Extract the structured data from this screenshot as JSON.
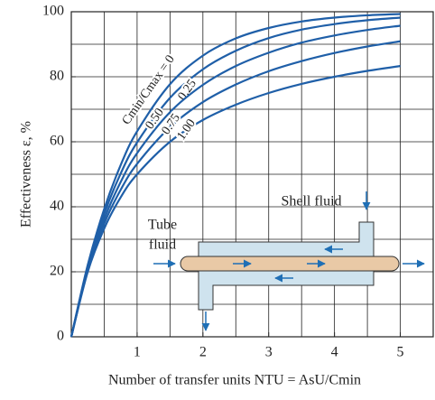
{
  "chart_data": {
    "type": "line",
    "x_label": "Number of transfer units NTU = AsU/Cmin",
    "y_label": "Effectiveness ε, %",
    "x": [
      0,
      0.25,
      0.5,
      0.75,
      1,
      1.5,
      2,
      2.5,
      3,
      3.5,
      4,
      4.5,
      5
    ],
    "series": [
      {
        "name": "Cmin/Cmax = 0",
        "color": "#1f5fa8",
        "values": [
          0,
          22.1,
          39.3,
          52.8,
          63.2,
          77.7,
          86.5,
          91.8,
          95.0,
          97.0,
          98.2,
          98.9,
          99.3
        ]
      },
      {
        "name": "0.25",
        "color": "#1f5fa8",
        "values": [
          0,
          21.6,
          37.8,
          50.2,
          59.8,
          73.5,
          82.3,
          88.0,
          91.9,
          94.5,
          96.2,
          97.4,
          98.2
        ]
      },
      {
        "name": "0.50",
        "color": "#1f5fa8",
        "values": [
          0,
          21.0,
          36.2,
          47.6,
          56.5,
          69.1,
          77.5,
          83.3,
          87.4,
          90.5,
          92.7,
          94.4,
          95.7
        ]
      },
      {
        "name": "0.75",
        "color": "#1f5fa8",
        "values": [
          0,
          20.5,
          34.8,
          45.2,
          53.2,
          64.5,
          72.2,
          77.6,
          81.7,
          84.8,
          87.3,
          89.3,
          90.9
        ]
      },
      {
        "name": "1.00",
        "color": "#1f5fa8",
        "values": [
          0,
          20.0,
          33.3,
          42.9,
          50.0,
          60.0,
          66.7,
          71.4,
          75.0,
          77.8,
          80.0,
          81.8,
          83.3
        ]
      }
    ],
    "xlim": [
      0,
      5.5
    ],
    "ylim": [
      0,
      100
    ],
    "xticks": [
      1,
      2,
      3,
      4,
      5
    ],
    "yticks": [
      0,
      20,
      40,
      60,
      80,
      100
    ],
    "xgrid": [
      0.5,
      1,
      1.5,
      2,
      2.5,
      3,
      3.5,
      4,
      4.5,
      5
    ],
    "ygrid": [
      10,
      20,
      30,
      40,
      50,
      60,
      70,
      80,
      90
    ],
    "grid": true,
    "annotations": {
      "shell": "Shell fluid",
      "tube_1": "Tube",
      "tube_2": "fluid"
    }
  }
}
